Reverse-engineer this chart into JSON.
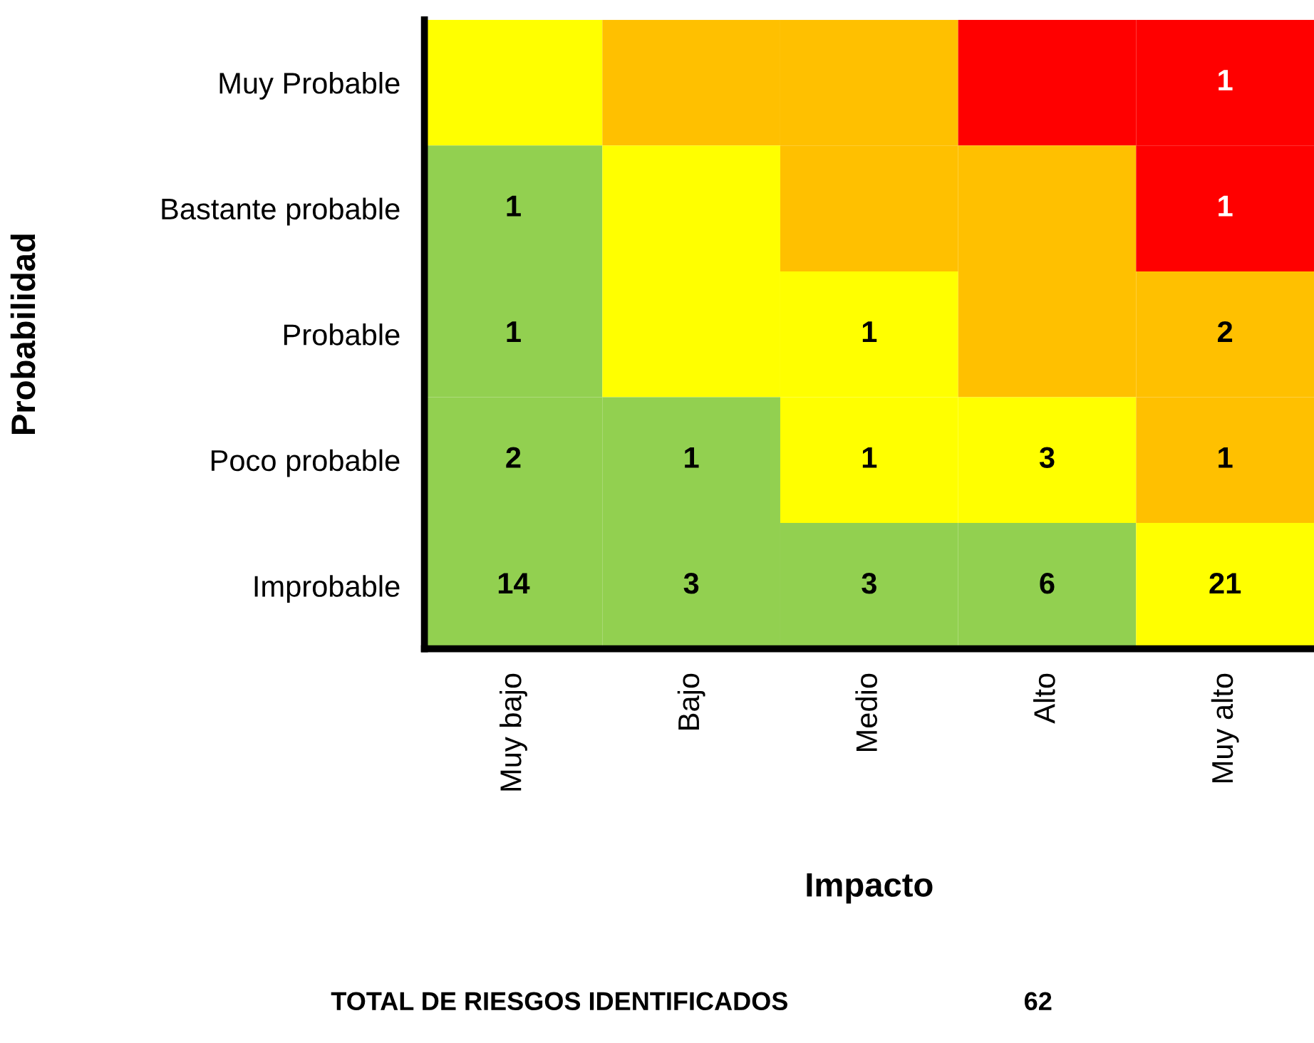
{
  "chart_data": {
    "type": "heatmap",
    "xlabel": "Impacto",
    "ylabel": "Probabilidad",
    "categories": [
      "Muy bajo",
      "Bajo",
      "Medio",
      "Alto",
      "Muy alto"
    ],
    "y_categories": [
      "Muy Probable",
      "Bastante probable",
      "Probable",
      "Poco probable",
      "Improbable"
    ],
    "cells": [
      [
        null,
        null,
        null,
        null,
        1
      ],
      [
        1,
        null,
        null,
        null,
        1
      ],
      [
        1,
        null,
        1,
        null,
        2
      ],
      [
        2,
        1,
        1,
        3,
        1
      ],
      [
        14,
        3,
        3,
        6,
        21
      ]
    ],
    "colors": [
      [
        "#ffff00",
        "#ffc000",
        "#ffc000",
        "#ff0000",
        "#ff0000"
      ],
      [
        "#92d050",
        "#ffff00",
        "#ffc000",
        "#ffc000",
        "#ff0000"
      ],
      [
        "#92d050",
        "#ffff00",
        "#ffff00",
        "#ffc000",
        "#ffc000"
      ],
      [
        "#92d050",
        "#92d050",
        "#ffff00",
        "#ffff00",
        "#ffc000"
      ],
      [
        "#92d050",
        "#92d050",
        "#92d050",
        "#92d050",
        "#ffff00"
      ]
    ],
    "data_labels": true,
    "annotations": [
      "TOTAL DE RIESGOS IDENTIFICADOS",
      "62"
    ]
  }
}
